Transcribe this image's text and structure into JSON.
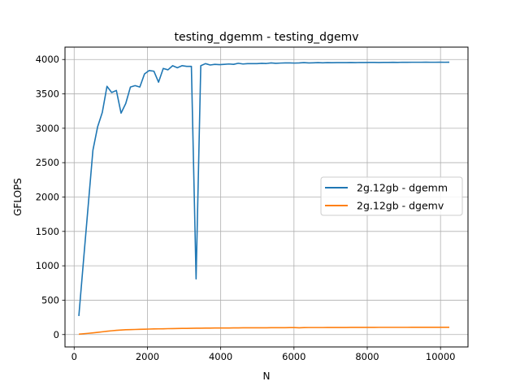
{
  "chart_data": {
    "type": "line",
    "title": "testing_dgemm - testing_dgemv",
    "xlabel": "N",
    "ylabel": "GFLOPS",
    "xlim": [
      -250,
      10750
    ],
    "ylim": [
      -180,
      4180
    ],
    "xticks": [
      0,
      2000,
      4000,
      6000,
      8000,
      10000
    ],
    "yticks": [
      0,
      500,
      1000,
      1500,
      2000,
      2500,
      3000,
      3500,
      4000
    ],
    "grid": true,
    "legend_position": "center-right",
    "series": [
      {
        "name": "2g.12gb - dgemm",
        "color": "#1f77b4",
        "x": [
          128,
          256,
          384,
          512,
          640,
          768,
          896,
          1024,
          1152,
          1280,
          1408,
          1536,
          1664,
          1792,
          1920,
          2048,
          2176,
          2304,
          2432,
          2560,
          2688,
          2816,
          2944,
          3072,
          3200,
          3328,
          3456,
          3584,
          3712,
          3840,
          3968,
          4096,
          4224,
          4352,
          4480,
          4608,
          4736,
          4864,
          4992,
          5120,
          5248,
          5376,
          5504,
          5632,
          5760,
          5888,
          6016,
          6144,
          6272,
          6400,
          6528,
          6656,
          6784,
          6912,
          7040,
          7168,
          7296,
          7424,
          7552,
          7680,
          7808,
          7936,
          8064,
          8192,
          8320,
          8448,
          8576,
          8704,
          8832,
          8960,
          9088,
          9216,
          9344,
          9472,
          9600,
          9728,
          9856,
          9984,
          10112,
          10240
        ],
        "y": [
          270,
          1080,
          1880,
          2680,
          3020,
          3230,
          3610,
          3520,
          3550,
          3220,
          3360,
          3600,
          3620,
          3600,
          3790,
          3840,
          3830,
          3670,
          3870,
          3850,
          3910,
          3880,
          3910,
          3900,
          3900,
          810,
          3910,
          3940,
          3920,
          3930,
          3925,
          3930,
          3935,
          3930,
          3945,
          3935,
          3940,
          3940,
          3940,
          3945,
          3942,
          3950,
          3945,
          3948,
          3950,
          3950,
          3948,
          3950,
          3955,
          3950,
          3952,
          3955,
          3952,
          3955,
          3953,
          3955,
          3955,
          3955,
          3956,
          3955,
          3957,
          3956,
          3958,
          3958,
          3956,
          3958,
          3958,
          3959,
          3958,
          3960,
          3959,
          3960,
          3960,
          3960,
          3961,
          3960,
          3960,
          3961,
          3960,
          3961
        ]
      },
      {
        "name": "2g.12gb - dgemv",
        "color": "#ff7f0e",
        "x": [
          128,
          256,
          384,
          512,
          640,
          768,
          896,
          1024,
          1152,
          1280,
          1408,
          1536,
          1664,
          1792,
          1920,
          2048,
          2176,
          2304,
          2432,
          2560,
          2688,
          2816,
          2944,
          3072,
          3200,
          3328,
          3456,
          3584,
          3712,
          3840,
          3968,
          4096,
          4224,
          4352,
          4480,
          4608,
          4736,
          4864,
          4992,
          5120,
          5248,
          5376,
          5504,
          5632,
          5760,
          5888,
          6016,
          6144,
          6272,
          6400,
          6528,
          6656,
          6784,
          6912,
          7040,
          7168,
          7296,
          7424,
          7552,
          7680,
          7808,
          7936,
          8064,
          8192,
          8320,
          8448,
          8576,
          8704,
          8832,
          8960,
          9088,
          9216,
          9344,
          9472,
          9600,
          9728,
          9856,
          9984,
          10112,
          10240
        ],
        "y": [
          5,
          12,
          18,
          25,
          32,
          40,
          48,
          55,
          62,
          66,
          70,
          72,
          74,
          76,
          78,
          80,
          82,
          83,
          84,
          86,
          87,
          88,
          89,
          90,
          91,
          92,
          93,
          94,
          94,
          95,
          95,
          96,
          96,
          97,
          97,
          98,
          98,
          98,
          99,
          99,
          99,
          100,
          100,
          100,
          100,
          101,
          101,
          98,
          101,
          102,
          102,
          102,
          102,
          103,
          103,
          103,
          103,
          103,
          104,
          104,
          104,
          104,
          104,
          104,
          105,
          105,
          105,
          105,
          105,
          105,
          105,
          106,
          106,
          106,
          106,
          106,
          106,
          106,
          106,
          106
        ]
      }
    ]
  }
}
